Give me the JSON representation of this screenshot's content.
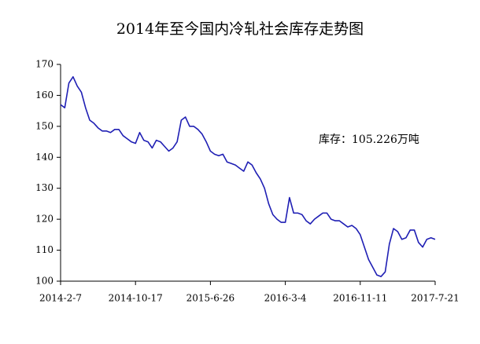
{
  "chart_data": {
    "type": "line",
    "title": "2014年至今国内冷轧社会库存走势图",
    "annotation": "库存：105.226万吨",
    "categories": [
      "2014-2-7",
      null,
      null,
      null,
      null,
      null,
      null,
      null,
      null,
      null,
      null,
      null,
      null,
      null,
      null,
      null,
      null,
      null,
      "2014-10-17",
      null,
      null,
      null,
      null,
      null,
      null,
      null,
      null,
      null,
      null,
      null,
      null,
      null,
      null,
      null,
      null,
      null,
      "2015-6-26",
      null,
      null,
      null,
      null,
      null,
      null,
      null,
      null,
      null,
      null,
      null,
      null,
      null,
      null,
      null,
      null,
      null,
      "2016-3-4",
      null,
      null,
      null,
      null,
      null,
      null,
      null,
      null,
      null,
      null,
      null,
      null,
      null,
      null,
      null,
      null,
      null,
      "2016-11-11",
      null,
      null,
      null,
      null,
      null,
      null,
      null,
      null,
      null,
      null,
      null,
      null,
      null,
      null,
      null,
      null,
      null,
      "2017-7-21"
    ],
    "series": [
      {
        "name": "库存",
        "color": "#1f1fb4",
        "values": [
          157,
          156,
          164,
          166,
          163,
          161,
          156,
          152,
          151,
          149.5,
          148.5,
          148.5,
          148,
          149,
          149,
          147,
          146,
          145,
          144.5,
          148,
          145.5,
          145,
          143,
          145.5,
          145,
          143.5,
          142,
          143,
          145,
          152,
          153,
          150,
          150,
          149,
          147.5,
          145,
          142,
          141,
          140.5,
          141,
          138.5,
          138,
          137.5,
          136.5,
          135.5,
          138.5,
          137.5,
          135,
          133,
          130,
          125,
          121.5,
          120,
          119,
          119,
          127,
          122,
          122,
          121.5,
          119.5,
          118.5,
          120,
          121,
          122,
          122,
          120,
          119.5,
          119.5,
          118.5,
          117.5,
          118,
          117,
          115,
          111,
          107,
          104.5,
          102,
          101.5,
          103,
          112,
          117,
          116,
          113.5,
          114,
          116.5,
          116.5,
          112.5,
          111,
          113.5,
          114,
          113.5
        ]
      }
    ],
    "ylim": [
      100,
      170
    ],
    "yticks": [
      100,
      110,
      120,
      130,
      140,
      150,
      160,
      170
    ]
  }
}
